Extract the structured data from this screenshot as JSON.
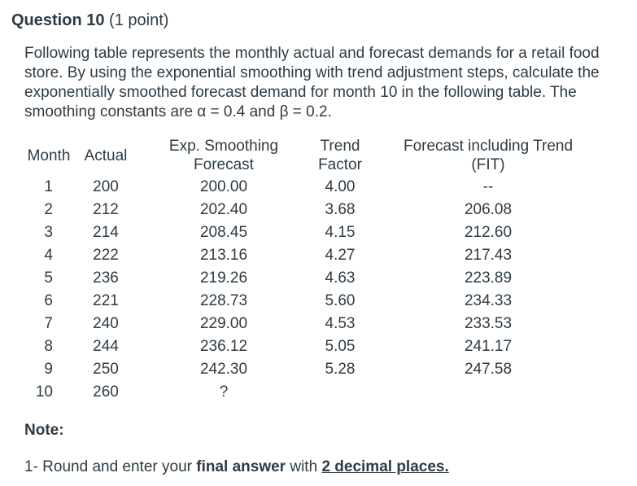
{
  "question": {
    "title": "Question 10",
    "points": "(1 point)",
    "body": "Following table represents the monthly actual and forecast demands for a retail food store. By using the exponential smoothing with trend adjustment steps, calculate the exponentially smoothed forecast demand for month 10 in the following table. The smoothing constants are α = 0.4 and β = 0.2."
  },
  "table": {
    "headers": [
      "Month",
      "Actual",
      "Exp. Smoothing\nForecast",
      "Trend\nFactor",
      "Forecast including Trend\n(FIT)"
    ],
    "rows": [
      [
        "1",
        "200",
        "200.00",
        "4.00",
        "--"
      ],
      [
        "2",
        "212",
        "202.40",
        "3.68",
        "206.08"
      ],
      [
        "3",
        "214",
        "208.45",
        "4.15",
        "212.60"
      ],
      [
        "4",
        "222",
        "213.16",
        "4.27",
        "217.43"
      ],
      [
        "5",
        "236",
        "219.26",
        "4.63",
        "223.89"
      ],
      [
        "6",
        "221",
        "228.73",
        "5.60",
        "234.33"
      ],
      [
        "7",
        "240",
        "229.00",
        "4.53",
        "233.53"
      ],
      [
        "8",
        "244",
        "236.12",
        "5.05",
        "241.17"
      ],
      [
        "9",
        "250",
        "242.30",
        "5.28",
        "247.58"
      ],
      [
        "10",
        "260",
        "?",
        "",
        ""
      ]
    ]
  },
  "note": {
    "label": "Note:",
    "prefix": "1- Round and enter your ",
    "bold": "final answer",
    "middle": " with ",
    "emphasis": "2 decimal places."
  },
  "colors": {
    "text": "#2d3b45",
    "background": "#ffffff"
  }
}
